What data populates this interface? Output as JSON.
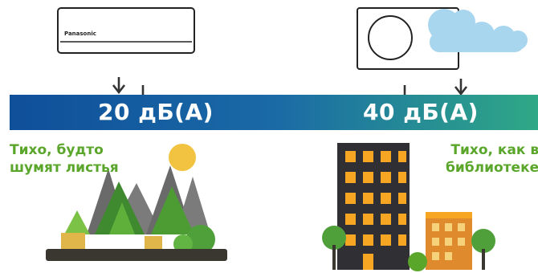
{
  "brand_text": "Panasonic",
  "levels": [
    {
      "value_label": "20 дБ(А)",
      "caption_line1": "Тихо, будто",
      "caption_line2": "шумят листья"
    },
    {
      "value_label": "40 дБ(А)",
      "caption_line1": "Тихо, как в",
      "caption_line2": "библиотеке"
    }
  ],
  "colors": {
    "band_start": "#0f4f9a",
    "band_end": "#2fa886",
    "caption_green": "#5aa62b",
    "arrow": "#333333"
  },
  "icons": {
    "indoor_unit": "wall-mounted-air-conditioner-icon",
    "outdoor_unit": "outdoor-air-conditioner-unit-icon",
    "forest": "forest-trees-icon",
    "city": "city-buildings-icon"
  }
}
